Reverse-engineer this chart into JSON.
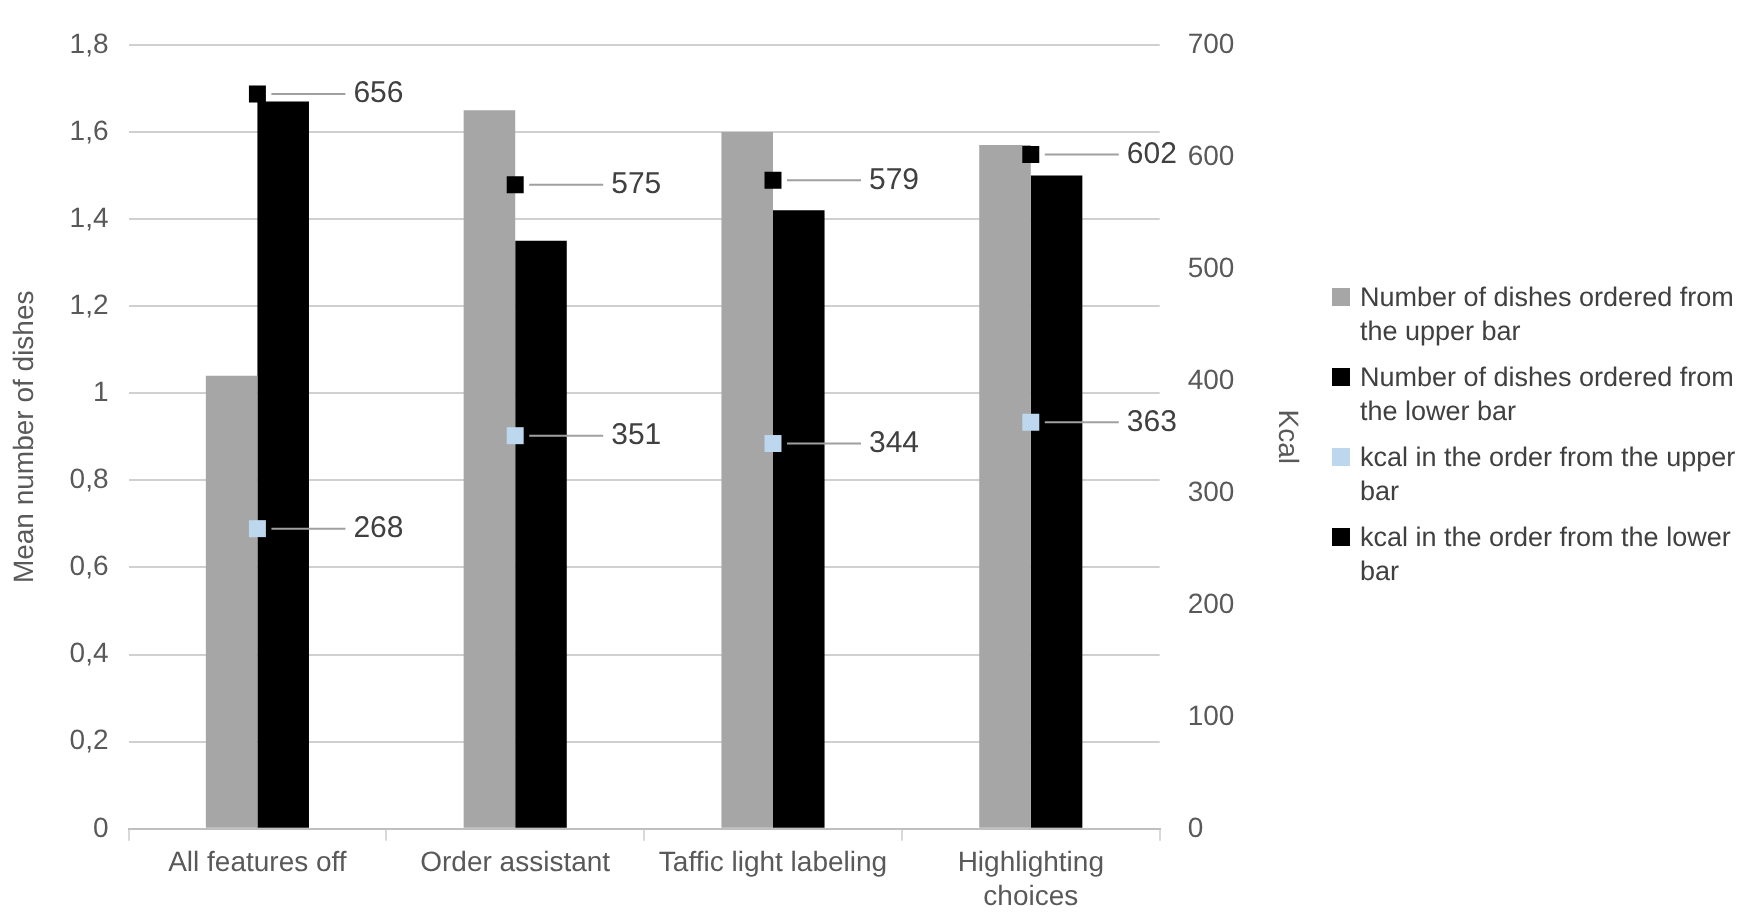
{
  "chart_data": {
    "type": "bar",
    "categories": [
      "All features off",
      "Order assistant",
      "Taffic light labeling",
      "Highlighting choices"
    ],
    "ylabel": "Mean number of dishes",
    "y2label": "Kcal",
    "ylim": [
      0,
      1.8
    ],
    "yticks": [
      0,
      {
        "value": 0.2,
        "label": "0,2"
      },
      {
        "value": 0.4,
        "label": "0,4"
      },
      {
        "value": 0.6,
        "label": "0,6"
      },
      {
        "value": 0.8,
        "label": "0,8"
      },
      1,
      {
        "value": 1.2,
        "label": "1,2"
      },
      {
        "value": 1.4,
        "label": "1,4"
      },
      {
        "value": 1.6,
        "label": "1,6"
      },
      {
        "value": 1.8,
        "label": "1,8"
      }
    ],
    "y2lim": [
      0,
      700
    ],
    "y2ticks": [
      0,
      100,
      200,
      300,
      400,
      500,
      600,
      700
    ],
    "grid": "y",
    "legend": "right",
    "series": [
      {
        "name": "Number of dishes ordered from the upper bar",
        "color": "#a6a6a6",
        "values": [
          1.04,
          1.65,
          1.6,
          1.57
        ]
      },
      {
        "name": "Number of dishes ordered from the lower bar",
        "color": "#000000",
        "values": [
          1.67,
          1.35,
          1.42,
          1.5
        ]
      },
      {
        "name": "kcal in the order from the upper bar",
        "type": "scatter",
        "axis": "y2",
        "marker": "square",
        "color": "#bdd7ee",
        "values": [
          268,
          351,
          344,
          363
        ],
        "value_labels": [
          "268",
          "351",
          "344",
          "363"
        ]
      },
      {
        "name": "kcal in the order from the lower bar",
        "type": "scatter",
        "axis": "y2",
        "marker": "square",
        "color": "#000000",
        "values": [
          656,
          575,
          579,
          602
        ],
        "value_labels": [
          "656",
          "575",
          "579",
          "602"
        ]
      }
    ]
  }
}
